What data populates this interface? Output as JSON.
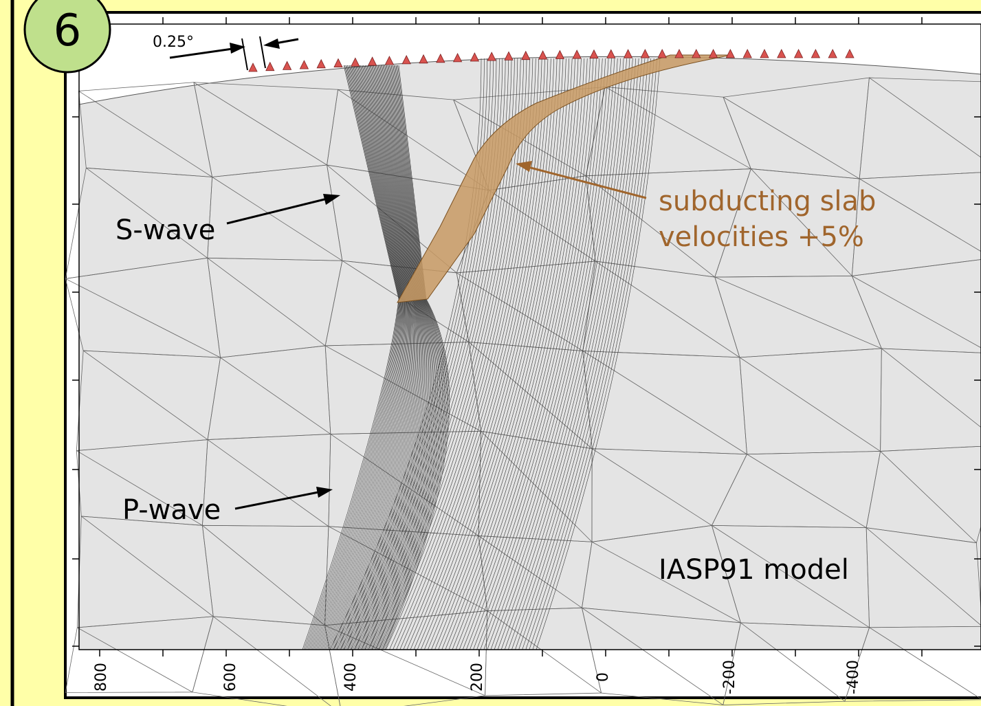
{
  "badge": "6",
  "scale_label": "0.25°",
  "labels": {
    "s_wave": "S-wave",
    "p_wave": "P-wave",
    "slab_line1": "subducting slab",
    "slab_line2": "velocities +5%",
    "model": "IASP91 model"
  },
  "x_axis_ticks": [
    "800",
    "600",
    "400",
    "200",
    "0",
    "-200",
    "-400"
  ]
}
